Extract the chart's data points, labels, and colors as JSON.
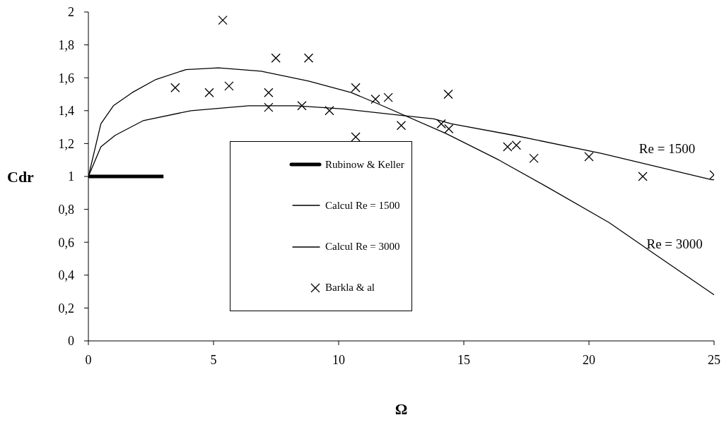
{
  "chart_data": {
    "type": "line",
    "xlabel": "Ω",
    "ylabel": "Cdr",
    "xlim": [
      0,
      25
    ],
    "xticks": [
      0,
      5,
      10,
      15,
      20,
      25
    ],
    "ylim": [
      0,
      2
    ],
    "yticks": [
      0,
      {
        "value": 0.2,
        "label": "0,2"
      },
      {
        "value": 0.4,
        "label": "0,4"
      },
      {
        "value": 0.6,
        "label": "0,6"
      },
      {
        "value": 0.8,
        "label": "0,8"
      },
      1,
      {
        "value": 1.2,
        "label": "1,2"
      },
      {
        "value": 1.4,
        "label": "1,4"
      },
      {
        "value": 1.6,
        "label": "1,6"
      },
      {
        "value": 1.8,
        "label": "1,8"
      },
      2
    ],
    "grid": false,
    "legend": "center",
    "line_style": "solid",
    "series": [
      {
        "name": "Rubinow & Keller",
        "color": "#000000",
        "x": [
          0,
          3
        ],
        "values": [
          1,
          1
        ]
      },
      {
        "name": "Calcul Re = 1500",
        "color": "#000000",
        "x": [
          0,
          0.5,
          1.07,
          2.2,
          4.1,
          6.4,
          8.3,
          10.2,
          12.6,
          13.8,
          14.5,
          17,
          20.5,
          24.9,
          25
        ],
        "values": [
          1,
          1.18,
          1.25,
          1.34,
          1.4,
          1.43,
          1.43,
          1.41,
          1.37,
          1.35,
          1.32,
          1.25,
          1.14,
          0.98,
          0.98
        ]
      },
      {
        "name": "Calcul Re = 3000",
        "color": "#000000",
        "x": [
          0,
          0.5,
          1,
          1.75,
          2.7,
          3.9,
          5.2,
          6.9,
          8.8,
          10.5,
          11.6,
          14.3,
          16.4,
          18.4,
          20.8,
          22.8,
          25
        ],
        "values": [
          1,
          1.32,
          1.43,
          1.51,
          1.59,
          1.65,
          1.66,
          1.64,
          1.58,
          1.51,
          1.44,
          1.26,
          1.1,
          0.93,
          0.72,
          0.51,
          0.28
        ]
      },
      {
        "name": "Barkla & al",
        "type": "scatter",
        "marker": "cross",
        "color": "#000000",
        "x": [
          3.47,
          4.83,
          5.37,
          5.62,
          7.2,
          7.2,
          7.49,
          8.53,
          8.8,
          9.63,
          10.68,
          10.68,
          11.47,
          11.98,
          12.5,
          14.1,
          14.38,
          14.4,
          16.75,
          17.1,
          17.8,
          20,
          22.15,
          25
        ],
        "values": [
          1.54,
          1.51,
          1.95,
          1.55,
          1.51,
          1.42,
          1.72,
          1.43,
          1.72,
          1.4,
          1.54,
          1.24,
          1.47,
          1.48,
          1.31,
          1.32,
          1.5,
          1.29,
          1.18,
          1.19,
          1.11,
          1.12,
          1,
          1.01
        ]
      }
    ],
    "annotations": [
      {
        "text": "Re = 1500",
        "x": 22.5,
        "y": 1.09
      },
      {
        "text": "Re = 3000",
        "x": 22.8,
        "y": 0.51
      }
    ]
  }
}
